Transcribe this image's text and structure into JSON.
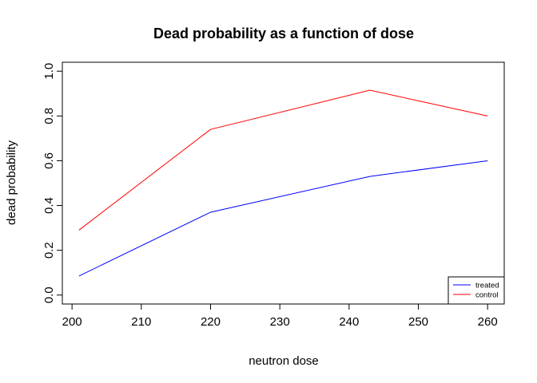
{
  "chart_data": {
    "type": "line",
    "title": "Dead probability as a function of dose",
    "xlabel": "neutron dose",
    "ylabel": "dead probability",
    "x": [
      201,
      220,
      243,
      260
    ],
    "xlim": [
      198.6,
      262.4
    ],
    "ylim": [
      -0.04,
      1.04
    ],
    "xticks": [
      200,
      210,
      220,
      230,
      240,
      250,
      260
    ],
    "yticks": [
      0.0,
      0.2,
      0.4,
      0.6,
      0.8,
      1.0
    ],
    "xtick_labels": [
      "200",
      "210",
      "220",
      "230",
      "240",
      "250",
      "260"
    ],
    "ytick_labels": [
      "0.0",
      "0.2",
      "0.4",
      "0.6",
      "0.8",
      "1.0"
    ],
    "grid": false,
    "legend_position": "bottom-right",
    "series": [
      {
        "name": "treated",
        "values": [
          0.085,
          0.37,
          0.53,
          0.6
        ],
        "color": "#0000ff"
      },
      {
        "name": "control",
        "values": [
          0.29,
          0.74,
          0.915,
          0.8
        ],
        "color": "#ff0000"
      }
    ]
  }
}
